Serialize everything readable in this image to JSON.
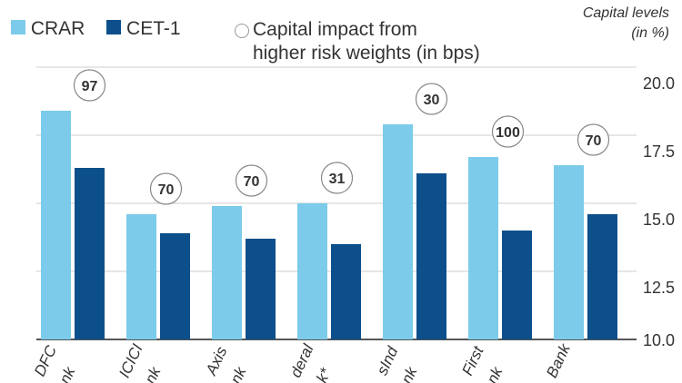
{
  "chart_data": {
    "type": "bar",
    "ylabel": "Capital levels (in %)",
    "ylim": [
      10,
      20
    ],
    "yticks": [
      "20.0",
      "17.5",
      "15.0",
      "12.5",
      "10.0"
    ],
    "categories": [
      [
        "DFC",
        "nk"
      ],
      [
        "ICICI",
        "nk"
      ],
      [
        "Axis",
        "nk"
      ],
      [
        "deral",
        "k*"
      ],
      [
        "sInd",
        "nk"
      ],
      [
        "First",
        "nk"
      ],
      [
        "Bank",
        ""
      ]
    ],
    "series": [
      {
        "name": "CRAR",
        "color": "#7ccbea",
        "values": [
          18.4,
          14.6,
          14.9,
          15.0,
          17.9,
          16.7,
          16.4
        ]
      },
      {
        "name": "CET-1",
        "color": "#0d4f8b",
        "values": [
          16.3,
          13.9,
          13.7,
          13.5,
          16.1,
          14.0,
          14.6
        ]
      }
    ],
    "annotations": {
      "name": "Capital impact from higher risk weights (in bps)",
      "values": [
        "97",
        "70",
        "70",
        "31",
        "30",
        "100",
        "70"
      ]
    },
    "legend": {
      "placement": "top-left",
      "line1": "Capital impact from",
      "line2": "higher risk weights (in bps)"
    },
    "unit": {
      "line1": "Capital levels",
      "line2": "(in %)"
    },
    "grid": true
  }
}
